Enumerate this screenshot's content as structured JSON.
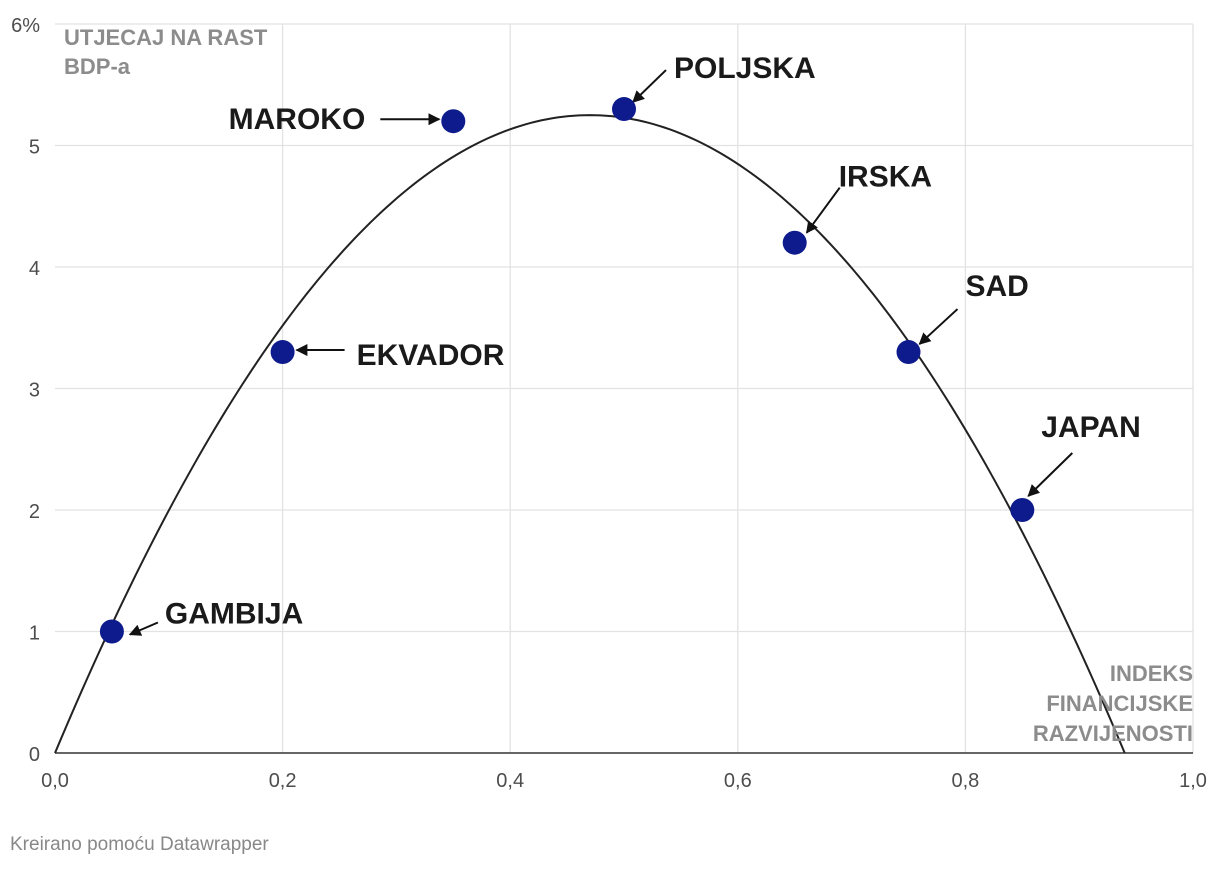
{
  "colors": {
    "point_fill": "#0d1b8c",
    "curve": "#222222",
    "grid": "#e2e2e2",
    "label": "#1a1a1a",
    "axis_title": "#8c8c8c"
  },
  "chart_data": {
    "type": "scatter",
    "title": "",
    "ylabel": "UTJECAJ NA RAST BDP-a",
    "ylabel_lines": [
      "UTJECAJ NA RAST",
      "BDP-a"
    ],
    "xlabel": "INDEKS FINANCIJSKE RAZVIJENOSTI",
    "xlabel_lines": [
      "INDEKS",
      "FINANCIJSKE",
      "RAZVIJENOSTI"
    ],
    "xlim": [
      0,
      1
    ],
    "ylim": [
      0,
      6
    ],
    "x_ticks": [
      0,
      0.2,
      0.4,
      0.6,
      0.8,
      1.0
    ],
    "x_tick_labels": [
      "0,0",
      "0,2",
      "0,4",
      "0,6",
      "0,8",
      "1,0"
    ],
    "y_ticks": [
      0,
      1,
      2,
      3,
      4,
      5,
      6
    ],
    "y_tick_labels": [
      "0",
      "1",
      "2",
      "3",
      "4",
      "5",
      "6%"
    ],
    "grid": true,
    "points": [
      {
        "label": "GAMBIJA",
        "x": 0.05,
        "y": 1.0
      },
      {
        "label": "EKVADOR",
        "x": 0.2,
        "y": 3.3
      },
      {
        "label": "MAROKO",
        "x": 0.35,
        "y": 5.2
      },
      {
        "label": "POLJSKA",
        "x": 0.5,
        "y": 5.3
      },
      {
        "label": "IRSKA",
        "x": 0.65,
        "y": 4.2
      },
      {
        "label": "SAD",
        "x": 0.75,
        "y": 3.3
      },
      {
        "label": "JAPAN",
        "x": 0.85,
        "y": 2.0
      }
    ],
    "curve": {
      "type": "quadratic",
      "roots": [
        0.0,
        0.94
      ],
      "peak": [
        0.47,
        5.25
      ]
    }
  },
  "footer": {
    "credit": "Kreirano pomoću Datawrapper"
  }
}
